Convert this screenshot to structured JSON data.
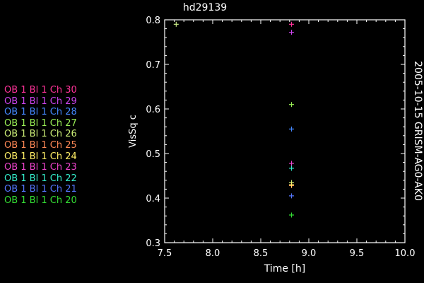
{
  "chart_data": {
    "type": "scatter",
    "title": "hd29139",
    "xlabel": "Time [h]",
    "ylabel": "VisSq c",
    "side_label": "2005-10-15 GRISM-AG0-AK0",
    "xlim": [
      7.5,
      10.0
    ],
    "ylim": [
      0.3,
      0.8
    ],
    "xticks": [
      7.5,
      8.0,
      8.5,
      9.0,
      9.5,
      10.0
    ],
    "xtick_labels": [
      "7.5",
      "8.0",
      "8.5",
      "9.0",
      "9.5",
      "10.0"
    ],
    "yticks": [
      0.3,
      0.4,
      0.5,
      0.6,
      0.7,
      0.8
    ],
    "ytick_labels": [
      "0.3",
      "0.4",
      "0.5",
      "0.6",
      "0.7",
      "0.8"
    ],
    "marker": "+",
    "legend_position": "left",
    "series": [
      {
        "name": "OB 1 Bl 1 Ch 30",
        "color": "#ff3399",
        "x": [
          8.82
        ],
        "y": [
          0.79
        ]
      },
      {
        "name": "OB 1 Bl 1 Ch 29",
        "color": "#cc44ee",
        "x": [
          8.82
        ],
        "y": [
          0.772
        ]
      },
      {
        "name": "OB 1 Bl 1 Ch 28",
        "color": "#4488ff",
        "x": [
          8.82
        ],
        "y": [
          0.555
        ]
      },
      {
        "name": "OB 1 Bl 1 Ch 27",
        "color": "#99ee55",
        "x": [
          8.82
        ],
        "y": [
          0.61
        ]
      },
      {
        "name": "OB 1 Bl 1 Ch 26",
        "color": "#ccee77",
        "x": [
          8.82
        ],
        "y": [
          0.435
        ]
      },
      {
        "name": "OB 1 Bl 1 Ch 25",
        "color": "#ff8855",
        "x": [
          8.82
        ],
        "y": [
          0.428
        ]
      },
      {
        "name": "OB 1 Bl 1 Ch 24",
        "color": "#ffee66",
        "x": [
          8.82
        ],
        "y": [
          0.43
        ]
      },
      {
        "name": "OB 1 Bl 1 Ch 23",
        "color": "#ee44cc",
        "x": [
          8.82
        ],
        "y": [
          0.478
        ]
      },
      {
        "name": "OB 1 Bl 1 Ch 22",
        "color": "#33eecc",
        "x": [
          8.82
        ],
        "y": [
          0.467
        ]
      },
      {
        "name": "OB 1 Bl 1 Ch 21",
        "color": "#5577ff",
        "x": [
          8.82
        ],
        "y": [
          0.405
        ]
      },
      {
        "name": "OB 1 Bl 1 Ch 20",
        "color": "#33dd33",
        "x": [
          8.82
        ],
        "y": [
          0.362
        ]
      }
    ],
    "extra_points": [
      {
        "color": "#ccee88",
        "x": 7.62,
        "y": 0.79
      }
    ]
  }
}
